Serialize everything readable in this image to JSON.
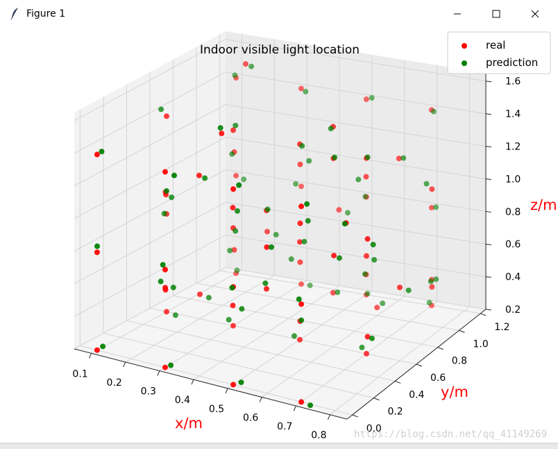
{
  "window": {
    "title": "Figure 1",
    "app_icon": "feather-icon",
    "minimize_icon": "minimize-icon",
    "maximize_icon": "maximize-icon",
    "close_icon": "close-icon"
  },
  "watermark": "https://blog.csdn.net/qq_41149269",
  "chart_data": {
    "type": "scatter",
    "title": "Indoor visible light location",
    "xlabel": "x/m",
    "ylabel": "y/m",
    "zlabel": "z/m",
    "xlim": [
      0.05,
      0.85
    ],
    "ylim": [
      -0.05,
      1.25
    ],
    "zlim": [
      0.2,
      1.65
    ],
    "xticks": [
      0.1,
      0.2,
      0.3,
      0.4,
      0.5,
      0.6,
      0.7,
      0.8
    ],
    "yticks": [
      0.0,
      0.2,
      0.4,
      0.6,
      0.8,
      1.0,
      1.2
    ],
    "zticks": [
      0.2,
      0.4,
      0.6,
      0.8,
      1.0,
      1.2,
      1.4,
      1.6
    ],
    "xtick_labels": [
      "0.1",
      "0.2",
      "0.3",
      "0.4",
      "0.5",
      "0.6",
      "0.7",
      "0.8"
    ],
    "ytick_labels": [
      "0.0",
      "0.2",
      "0.4",
      "0.6",
      "0.8",
      "1.0",
      "1.2"
    ],
    "ztick_labels": [
      "0.2",
      "0.4",
      "0.6",
      "0.8",
      "1.0",
      "1.2",
      "1.4",
      "1.6"
    ],
    "grid": true,
    "legend_position": "top-right",
    "series": [
      {
        "name": "real",
        "color": "#ff0000",
        "points": [
          [
            0.1,
            0.0,
            0.2
          ],
          [
            0.1,
            0.0,
            0.8
          ],
          [
            0.1,
            0.0,
            1.4
          ],
          [
            0.1,
            0.6,
            0.2
          ],
          [
            0.1,
            0.6,
            0.8
          ],
          [
            0.1,
            0.6,
            1.4
          ],
          [
            0.1,
            1.2,
            0.2
          ],
          [
            0.1,
            1.2,
            0.8
          ],
          [
            0.1,
            1.2,
            1.4
          ],
          [
            0.3,
            0.0,
            0.2
          ],
          [
            0.3,
            0.0,
            0.8
          ],
          [
            0.3,
            0.0,
            1.4
          ],
          [
            0.3,
            0.6,
            0.2
          ],
          [
            0.3,
            0.6,
            0.8
          ],
          [
            0.3,
            0.6,
            1.4
          ],
          [
            0.3,
            1.2,
            0.2
          ],
          [
            0.3,
            1.2,
            0.8
          ],
          [
            0.3,
            1.2,
            1.4
          ],
          [
            0.5,
            0.0,
            0.2
          ],
          [
            0.5,
            0.0,
            0.8
          ],
          [
            0.5,
            0.0,
            1.4
          ],
          [
            0.5,
            0.6,
            0.2
          ],
          [
            0.5,
            0.6,
            0.8
          ],
          [
            0.5,
            0.6,
            1.4
          ],
          [
            0.5,
            1.2,
            0.2
          ],
          [
            0.5,
            1.2,
            0.8
          ],
          [
            0.5,
            1.2,
            1.4
          ],
          [
            0.7,
            0.0,
            0.2
          ],
          [
            0.7,
            0.0,
            0.8
          ],
          [
            0.7,
            0.0,
            1.4
          ],
          [
            0.7,
            0.6,
            0.2
          ],
          [
            0.7,
            0.6,
            0.8
          ],
          [
            0.7,
            0.6,
            1.4
          ],
          [
            0.7,
            1.2,
            0.2
          ],
          [
            0.7,
            1.2,
            0.8
          ],
          [
            0.7,
            1.2,
            1.4
          ],
          [
            0.2,
            0.3,
            0.5
          ],
          [
            0.2,
            0.9,
            0.5
          ],
          [
            0.2,
            0.3,
            1.1
          ],
          [
            0.2,
            0.9,
            1.1
          ],
          [
            0.4,
            0.3,
            0.5
          ],
          [
            0.4,
            0.9,
            0.5
          ],
          [
            0.4,
            0.3,
            1.1
          ],
          [
            0.4,
            0.9,
            1.1
          ],
          [
            0.6,
            0.3,
            0.5
          ],
          [
            0.6,
            0.9,
            0.5
          ],
          [
            0.6,
            0.3,
            1.1
          ],
          [
            0.6,
            0.9,
            1.1
          ],
          [
            0.8,
            0.3,
            0.5
          ],
          [
            0.8,
            0.9,
            0.5
          ],
          [
            0.8,
            0.3,
            1.1
          ],
          [
            0.8,
            0.9,
            1.1
          ],
          [
            0.2,
            0.6,
            0.35
          ],
          [
            0.4,
            0.6,
            0.95
          ],
          [
            0.6,
            0.6,
            1.55
          ],
          [
            0.8,
            0.6,
            0.65
          ],
          [
            0.3,
            0.3,
            1.25
          ],
          [
            0.5,
            0.9,
            0.35
          ],
          [
            0.7,
            0.3,
            0.95
          ],
          [
            0.2,
            1.0,
            1.6
          ],
          [
            0.4,
            0.2,
            1.6
          ],
          [
            0.6,
            1.0,
            0.25
          ],
          [
            0.8,
            0.1,
            1.3
          ],
          [
            0.3,
            0.9,
            0.65
          ],
          [
            0.5,
            0.3,
            0.65
          ],
          [
            0.7,
            0.9,
            1.25
          ],
          [
            0.15,
            0.45,
            1.0
          ],
          [
            0.45,
            1.1,
            0.75
          ],
          [
            0.65,
            0.45,
            1.45
          ],
          [
            0.25,
            0.15,
            0.6
          ],
          [
            0.55,
            0.15,
            1.0
          ],
          [
            0.75,
            1.05,
            0.45
          ]
        ]
      },
      {
        "name": "prediction",
        "color": "#008000",
        "points": [
          [
            0.11,
            0.02,
            0.22
          ],
          [
            0.09,
            0.03,
            0.82
          ],
          [
            0.11,
            0.01,
            1.42
          ],
          [
            0.12,
            0.62,
            0.18
          ],
          [
            0.1,
            0.58,
            0.81
          ],
          [
            0.08,
            0.61,
            1.43
          ],
          [
            0.11,
            1.18,
            0.23
          ],
          [
            0.12,
            1.21,
            0.78
          ],
          [
            0.1,
            1.19,
            1.42
          ],
          [
            0.31,
            0.02,
            0.21
          ],
          [
            0.29,
            0.01,
            0.82
          ],
          [
            0.32,
            0.02,
            1.38
          ],
          [
            0.28,
            0.62,
            0.22
          ],
          [
            0.31,
            0.59,
            0.79
          ],
          [
            0.3,
            0.62,
            1.42
          ],
          [
            0.32,
            1.22,
            0.19
          ],
          [
            0.29,
            1.18,
            0.82
          ],
          [
            0.31,
            1.21,
            1.38
          ],
          [
            0.52,
            0.01,
            0.22
          ],
          [
            0.49,
            0.02,
            0.78
          ],
          [
            0.51,
            0.02,
            1.42
          ],
          [
            0.48,
            0.61,
            0.21
          ],
          [
            0.52,
            0.58,
            0.82
          ],
          [
            0.5,
            0.62,
            1.38
          ],
          [
            0.51,
            1.18,
            0.22
          ],
          [
            0.49,
            1.22,
            0.79
          ],
          [
            0.52,
            1.19,
            1.42
          ],
          [
            0.72,
            0.02,
            0.18
          ],
          [
            0.69,
            0.01,
            0.82
          ],
          [
            0.71,
            0.02,
            1.41
          ],
          [
            0.68,
            0.62,
            0.22
          ],
          [
            0.72,
            0.61,
            0.78
          ],
          [
            0.71,
            0.58,
            1.42
          ],
          [
            0.69,
            1.21,
            0.21
          ],
          [
            0.72,
            1.18,
            0.82
          ],
          [
            0.7,
            1.22,
            1.38
          ],
          [
            0.22,
            0.31,
            0.52
          ],
          [
            0.18,
            0.92,
            0.48
          ],
          [
            0.21,
            0.28,
            1.12
          ],
          [
            0.19,
            0.91,
            1.08
          ],
          [
            0.42,
            0.32,
            0.48
          ],
          [
            0.38,
            0.88,
            0.52
          ],
          [
            0.41,
            0.31,
            1.08
          ],
          [
            0.42,
            0.92,
            1.12
          ],
          [
            0.61,
            0.28,
            0.52
          ],
          [
            0.59,
            0.92,
            0.49
          ],
          [
            0.62,
            0.31,
            1.12
          ],
          [
            0.58,
            0.89,
            1.08
          ],
          [
            0.81,
            0.31,
            0.49
          ],
          [
            0.79,
            0.92,
            0.52
          ],
          [
            0.82,
            0.29,
            1.08
          ],
          [
            0.78,
            0.91,
            1.12
          ],
          [
            0.22,
            0.62,
            0.33
          ],
          [
            0.41,
            0.58,
            0.97
          ],
          [
            0.59,
            0.61,
            1.53
          ],
          [
            0.82,
            0.62,
            0.63
          ],
          [
            0.31,
            0.32,
            1.23
          ],
          [
            0.52,
            0.88,
            0.37
          ],
          [
            0.71,
            0.32,
            0.93
          ],
          [
            0.21,
            1.02,
            1.58
          ],
          [
            0.39,
            0.22,
            1.62
          ],
          [
            0.61,
            1.02,
            0.27
          ],
          [
            0.79,
            0.12,
            1.28
          ],
          [
            0.32,
            0.92,
            0.63
          ],
          [
            0.49,
            0.32,
            0.67
          ],
          [
            0.72,
            0.88,
            1.27
          ],
          [
            0.16,
            0.47,
            0.98
          ],
          [
            0.47,
            1.12,
            0.73
          ],
          [
            0.66,
            0.43,
            1.47
          ],
          [
            0.23,
            0.17,
            0.62
          ],
          [
            0.57,
            0.13,
            1.02
          ],
          [
            0.77,
            1.03,
            0.47
          ]
        ]
      }
    ]
  }
}
